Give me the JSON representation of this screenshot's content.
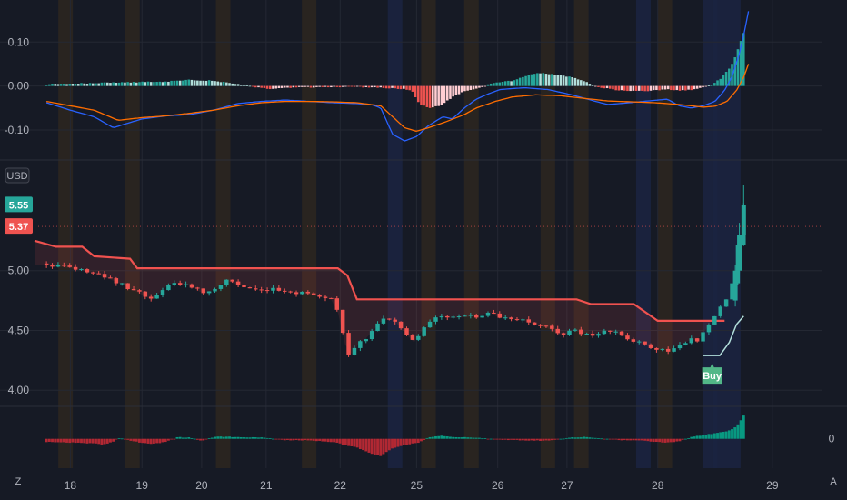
{
  "currency_label": "USD",
  "corner_left_icon": "Z",
  "corner_right_icon": "A",
  "colors": {
    "background": "#161a25",
    "up": "#26a69a",
    "down": "#ef5350",
    "up_light": "#b2dfdb",
    "down_light": "#ffcdd2",
    "macd_line": "#2962ff",
    "signal_line": "#ff6d00",
    "trail_line": "#f0524f",
    "osc_up": "#089981",
    "osc_down": "#b22833",
    "buy_tag": "#52b788"
  },
  "price_tags": [
    {
      "label": "5.55",
      "value": 5.55,
      "color": "#26a69a"
    },
    {
      "label": "5.37",
      "value": 5.37,
      "color": "#ef5350"
    }
  ],
  "buy_signal": {
    "label": "Buy",
    "date_index": 27.5,
    "price": 4.29
  },
  "chart_data": [
    {
      "id": "macd",
      "type": "bar",
      "ylim": [
        -0.16,
        0.175
      ],
      "yticks": [
        {
          "label": "0.10",
          "value": 0.1
        },
        {
          "label": "0.00",
          "value": 0.0
        },
        {
          "label": "-0.10",
          "value": -0.1
        }
      ],
      "histogram_anchors": [
        [
          0,
          0.004
        ],
        [
          3,
          0.008
        ],
        [
          5,
          0.01
        ],
        [
          6,
          0.014
        ],
        [
          7,
          0.012
        ],
        [
          8,
          0.004
        ],
        [
          9,
          -0.005
        ],
        [
          9.4,
          -0.007
        ],
        [
          10,
          -0.004
        ],
        [
          11,
          -0.003
        ],
        [
          13,
          -0.002
        ],
        [
          14,
          -0.004
        ],
        [
          15,
          -0.007
        ],
        [
          15.3,
          -0.01
        ],
        [
          15.6,
          -0.04
        ],
        [
          16,
          -0.05
        ],
        [
          16.5,
          -0.045
        ],
        [
          17,
          -0.025
        ],
        [
          17.6,
          -0.01
        ],
        [
          18.2,
          -0.004
        ],
        [
          18.6,
          0.006
        ],
        [
          19.5,
          0.012
        ],
        [
          20,
          0.022
        ],
        [
          20.6,
          0.03
        ],
        [
          21,
          0.028
        ],
        [
          22,
          0.02
        ],
        [
          22.5,
          0.012
        ],
        [
          23,
          -0.002
        ],
        [
          24,
          -0.01
        ],
        [
          25,
          -0.012
        ],
        [
          26,
          -0.008
        ],
        [
          26.5,
          -0.01
        ],
        [
          27,
          -0.009
        ],
        [
          27.5,
          -0.003
        ],
        [
          27.9,
          0.004
        ],
        [
          28.3,
          0.02
        ],
        [
          28.6,
          0.04
        ],
        [
          28.8,
          0.06
        ],
        [
          29,
          0.09
        ],
        [
          29.2,
          0.12
        ]
      ],
      "macd_anchors": [
        [
          0,
          -0.038
        ],
        [
          1,
          -0.055
        ],
        [
          2,
          -0.07
        ],
        [
          2.8,
          -0.095
        ],
        [
          3.2,
          -0.088
        ],
        [
          4,
          -0.075
        ],
        [
          5,
          -0.068
        ],
        [
          6,
          -0.065
        ],
        [
          7,
          -0.055
        ],
        [
          8,
          -0.04
        ],
        [
          9,
          -0.035
        ],
        [
          10,
          -0.032
        ],
        [
          11,
          -0.035
        ],
        [
          12,
          -0.038
        ],
        [
          13,
          -0.04
        ],
        [
          13.6,
          -0.042
        ],
        [
          14,
          -0.05
        ],
        [
          14.5,
          -0.11
        ],
        [
          15,
          -0.125
        ],
        [
          15.5,
          -0.115
        ],
        [
          16,
          -0.09
        ],
        [
          16.6,
          -0.07
        ],
        [
          17,
          -0.075
        ],
        [
          17.5,
          -0.05
        ],
        [
          18,
          -0.03
        ],
        [
          18.5,
          -0.018
        ],
        [
          19,
          -0.008
        ],
        [
          20,
          -0.004
        ],
        [
          21,
          -0.008
        ],
        [
          22,
          -0.02
        ],
        [
          23,
          -0.035
        ],
        [
          23.5,
          -0.042
        ],
        [
          24,
          -0.04
        ],
        [
          25,
          -0.035
        ],
        [
          26,
          -0.03
        ],
        [
          26.5,
          -0.045
        ],
        [
          27,
          -0.05
        ],
        [
          27.5,
          -0.045
        ],
        [
          28,
          -0.035
        ],
        [
          28.4,
          -0.01
        ],
        [
          28.7,
          0.02
        ],
        [
          29,
          0.07
        ],
        [
          29.2,
          0.115
        ],
        [
          29.4,
          0.17
        ]
      ],
      "signal_anchors": [
        [
          0,
          -0.035
        ],
        [
          1,
          -0.045
        ],
        [
          2,
          -0.055
        ],
        [
          3,
          -0.078
        ],
        [
          4,
          -0.072
        ],
        [
          5,
          -0.068
        ],
        [
          6,
          -0.062
        ],
        [
          7,
          -0.055
        ],
        [
          8,
          -0.045
        ],
        [
          9,
          -0.038
        ],
        [
          10,
          -0.035
        ],
        [
          11,
          -0.035
        ],
        [
          12,
          -0.036
        ],
        [
          13,
          -0.038
        ],
        [
          14,
          -0.045
        ],
        [
          14.5,
          -0.07
        ],
        [
          15,
          -0.095
        ],
        [
          15.5,
          -0.103
        ],
        [
          16,
          -0.095
        ],
        [
          16.8,
          -0.08
        ],
        [
          17.5,
          -0.065
        ],
        [
          18,
          -0.05
        ],
        [
          18.8,
          -0.035
        ],
        [
          19.5,
          -0.025
        ],
        [
          20.5,
          -0.02
        ],
        [
          21.5,
          -0.022
        ],
        [
          22.5,
          -0.028
        ],
        [
          23.5,
          -0.034
        ],
        [
          24.5,
          -0.036
        ],
        [
          25.5,
          -0.038
        ],
        [
          26.5,
          -0.042
        ],
        [
          27.5,
          -0.048
        ],
        [
          28,
          -0.046
        ],
        [
          28.5,
          -0.035
        ],
        [
          28.9,
          -0.01
        ],
        [
          29.2,
          0.02
        ],
        [
          29.4,
          0.05
        ]
      ]
    },
    {
      "id": "price",
      "type": "candlestick",
      "ylim": [
        3.88,
        5.88
      ],
      "yticks": [
        {
          "label": "5.00",
          "value": 5.0
        },
        {
          "label": "4.50",
          "value": 4.5
        },
        {
          "label": "4.00",
          "value": 4.0
        }
      ],
      "x_tick_labels": [
        {
          "label": "18",
          "date_index": 1
        },
        {
          "label": "19",
          "date_index": 4
        },
        {
          "label": "20",
          "date_index": 6.5
        },
        {
          "label": "21",
          "date_index": 9.2
        },
        {
          "label": "22",
          "date_index": 12.3
        },
        {
          "label": "25",
          "date_index": 15.5
        },
        {
          "label": "26",
          "date_index": 18.9
        },
        {
          "label": "27",
          "date_index": 21.8
        },
        {
          "label": "28",
          "date_index": 25.6
        },
        {
          "label": "29",
          "date_index": 30.4
        }
      ],
      "x_domain": [
        -0.5,
        32.5
      ],
      "close_anchors": [
        [
          0,
          5.05
        ],
        [
          1,
          5.02
        ],
        [
          2,
          4.98
        ],
        [
          3,
          4.9
        ],
        [
          4,
          4.8
        ],
        [
          4.4,
          4.75
        ],
        [
          4.8,
          4.83
        ],
        [
          5.2,
          4.9
        ],
        [
          6,
          4.88
        ],
        [
          6.6,
          4.8
        ],
        [
          7,
          4.84
        ],
        [
          7.5,
          4.92
        ],
        [
          8,
          4.88
        ],
        [
          9,
          4.85
        ],
        [
          10,
          4.83
        ],
        [
          11,
          4.8
        ],
        [
          11.5,
          4.78
        ],
        [
          12,
          4.75
        ],
        [
          12.3,
          4.6
        ],
        [
          12.6,
          4.28
        ],
        [
          12.8,
          4.3
        ],
        [
          13,
          4.38
        ],
        [
          13.5,
          4.45
        ],
        [
          14,
          4.58
        ],
        [
          14.5,
          4.6
        ],
        [
          15,
          4.48
        ],
        [
          15.4,
          4.4
        ],
        [
          15.8,
          4.52
        ],
        [
          16.3,
          4.62
        ],
        [
          17,
          4.6
        ],
        [
          18,
          4.62
        ],
        [
          18.6,
          4.65
        ],
        [
          19,
          4.6
        ],
        [
          19.5,
          4.6
        ],
        [
          20,
          4.58
        ],
        [
          20.5,
          4.55
        ],
        [
          21,
          4.52
        ],
        [
          21.6,
          4.45
        ],
        [
          22,
          4.5
        ],
        [
          22.5,
          4.48
        ],
        [
          23,
          4.46
        ],
        [
          23.5,
          4.5
        ],
        [
          24,
          4.47
        ],
        [
          24.5,
          4.42
        ],
        [
          25,
          4.38
        ],
        [
          25.5,
          4.35
        ],
        [
          26,
          4.33
        ],
        [
          26.5,
          4.38
        ],
        [
          27,
          4.42
        ],
        [
          27.3,
          4.42
        ],
        [
          27.6,
          4.5
        ],
        [
          27.9,
          4.6
        ],
        [
          28.2,
          4.7
        ],
        [
          28.5,
          4.75
        ],
        [
          28.8,
          4.95
        ],
        [
          29,
          5.3
        ],
        [
          29.2,
          5.55
        ]
      ],
      "trail_stop_anchors": [
        [
          -0.5,
          5.25
        ],
        [
          0.4,
          5.2
        ],
        [
          1.5,
          5.2
        ],
        [
          2,
          5.12
        ],
        [
          3.5,
          5.1
        ],
        [
          3.8,
          5.02
        ],
        [
          12.2,
          5.02
        ],
        [
          12.6,
          4.96
        ],
        [
          13.0,
          4.76
        ],
        [
          22.2,
          4.76
        ],
        [
          22.8,
          4.72
        ],
        [
          24.6,
          4.72
        ],
        [
          25.6,
          4.58
        ],
        [
          28.4,
          4.58
        ]
      ],
      "support_anchors": [
        [
          27.5,
          4.29
        ],
        [
          28.2,
          4.29
        ],
        [
          28.6,
          4.4
        ],
        [
          28.9,
          4.55
        ],
        [
          29.2,
          4.62
        ]
      ]
    },
    {
      "id": "oscillator",
      "type": "bar",
      "ylim": [
        -0.08,
        0.09
      ],
      "yticks": [
        {
          "label": "0",
          "value": 0
        }
      ],
      "anchors": [
        [
          0,
          -0.01
        ],
        [
          1,
          -0.012
        ],
        [
          2,
          -0.015
        ],
        [
          2.4,
          -0.018
        ],
        [
          2.8,
          -0.01
        ],
        [
          3,
          0.003
        ],
        [
          3.5,
          -0.005
        ],
        [
          4,
          -0.013
        ],
        [
          4.5,
          -0.016
        ],
        [
          5,
          -0.01
        ],
        [
          5.5,
          0.005
        ],
        [
          6,
          0.004
        ],
        [
          6.5,
          -0.006
        ],
        [
          7,
          0.006
        ],
        [
          7.5,
          0.007
        ],
        [
          8,
          0.005
        ],
        [
          9,
          0.004
        ],
        [
          10,
          -0.004
        ],
        [
          11,
          -0.005
        ],
        [
          12,
          -0.01
        ],
        [
          12.6,
          -0.022
        ],
        [
          13,
          -0.028
        ],
        [
          13.5,
          -0.045
        ],
        [
          14,
          -0.055
        ],
        [
          14.5,
          -0.03
        ],
        [
          15,
          -0.02
        ],
        [
          15.6,
          -0.012
        ],
        [
          16,
          0.004
        ],
        [
          16.5,
          0.01
        ],
        [
          17,
          0.006
        ],
        [
          18,
          0.003
        ],
        [
          19,
          -0.003
        ],
        [
          20,
          -0.005
        ],
        [
          21,
          -0.006
        ],
        [
          22,
          0.004
        ],
        [
          22.5,
          0.006
        ],
        [
          23,
          0.002
        ],
        [
          24,
          -0.004
        ],
        [
          25,
          -0.006
        ],
        [
          25.5,
          -0.01
        ],
        [
          26,
          -0.012
        ],
        [
          26.5,
          -0.008
        ],
        [
          27,
          0.006
        ],
        [
          27.5,
          0.012
        ],
        [
          28,
          0.018
        ],
        [
          28.5,
          0.025
        ],
        [
          28.8,
          0.035
        ],
        [
          29,
          0.05
        ],
        [
          29.2,
          0.075
        ]
      ]
    }
  ]
}
